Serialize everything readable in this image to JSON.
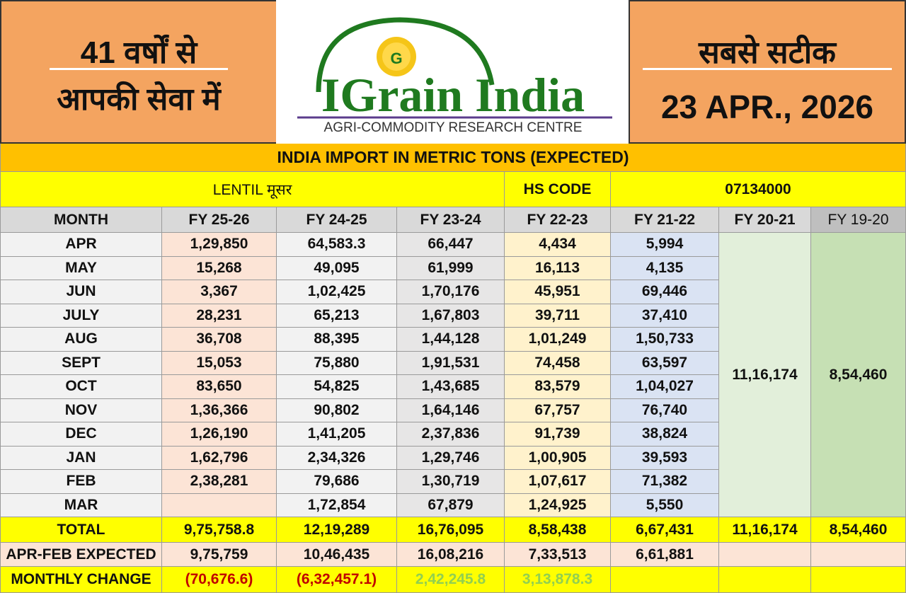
{
  "header": {
    "left_line1": "41 वर्षों से",
    "left_line2": "आपकी सेवा में",
    "logo": "IGrain India",
    "logo_sub": "AGRI-COMMODITY RESEARCH CENTRE",
    "right_line1": "सबसे सटीक",
    "date": "23 APR., 2026"
  },
  "table": {
    "title": "INDIA IMPORT IN METRIC TONS (EXPECTED)",
    "product": "LENTIL मूसर",
    "hs_label": "HS CODE",
    "hs_code": "07134000",
    "columns": [
      "MONTH",
      "FY 25-26",
      "FY 24-25",
      "FY 23-24",
      "FY 22-23",
      "FY 21-22",
      "FY 20-21",
      "FY 19-20"
    ],
    "rows": [
      [
        "APR",
        "1,29,850",
        "64,583.3",
        "66,447",
        "4,434",
        "5,994"
      ],
      [
        "MAY",
        "15,268",
        "49,095",
        "61,999",
        "16,113",
        "4,135"
      ],
      [
        "JUN",
        "3,367",
        "1,02,425",
        "1,70,176",
        "45,951",
        "69,446"
      ],
      [
        "JULY",
        "28,231",
        "65,213",
        "1,67,803",
        "39,711",
        "37,410"
      ],
      [
        "AUG",
        "36,708",
        "88,395",
        "1,44,128",
        "1,01,249",
        "1,50,733"
      ],
      [
        "SEPT",
        "15,053",
        "75,880",
        "1,91,531",
        "74,458",
        "63,597"
      ],
      [
        "OCT",
        "83,650",
        "54,825",
        "1,43,685",
        "83,579",
        "1,04,027"
      ],
      [
        "NOV",
        "1,36,366",
        "90,802",
        "1,64,146",
        "67,757",
        "76,740"
      ],
      [
        "DEC",
        "1,26,190",
        "1,41,205",
        "2,37,836",
        "91,739",
        "38,824"
      ],
      [
        "JAN",
        "1,62,796",
        "2,34,326",
        "1,29,746",
        "1,00,905",
        "39,593"
      ],
      [
        "FEB",
        "2,38,281",
        "79,686",
        "1,30,719",
        "1,07,617",
        "71,382"
      ],
      [
        "MAR",
        null,
        "1,72,854",
        "67,879",
        "1,24,925",
        "5,550"
      ]
    ],
    "merged": [
      "11,16,174",
      "8,54,460"
    ],
    "total": [
      "TOTAL",
      "9,75,758.8",
      "12,19,289",
      "16,76,095",
      "8,58,438",
      "6,67,431",
      "11,16,174",
      "8,54,460"
    ],
    "apr_feb": [
      "APR-FEB EXPECTED",
      "9,75,759",
      "10,46,435",
      "16,08,216",
      "7,33,513",
      "6,61,881"
    ],
    "monthly_change": [
      "MONTHLY CHANGE",
      "(70,676.6)",
      "(6,32,457.1)",
      "2,42,245.8",
      "3,13,878.3"
    ]
  }
}
